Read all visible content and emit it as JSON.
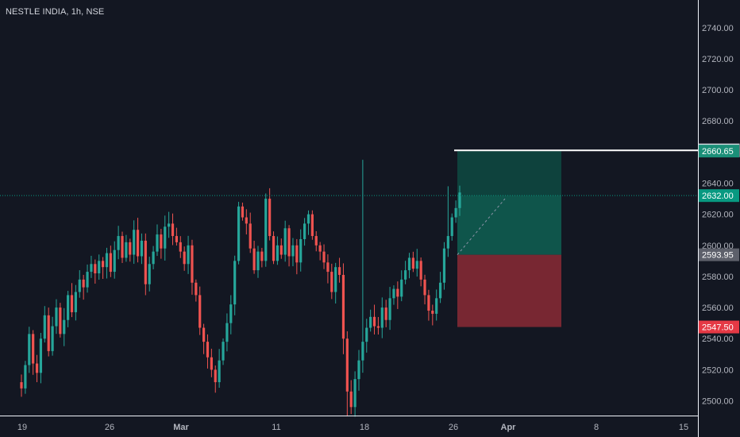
{
  "header": {
    "symbol": "NESTLE INDIA",
    "interval": "1h",
    "exchange": "NSE"
  },
  "colors": {
    "background": "#131722",
    "up": "#26a69a",
    "down": "#ef5350",
    "axis_text": "#b2b5be",
    "profit_zone": "#0f5c50",
    "loss_zone": "#8b2a35",
    "target_label": "#1b8f78",
    "stop_label": "#e53945",
    "entry_label": "#5d606b",
    "current_label": "#089981"
  },
  "chart_data": {
    "type": "candlestick",
    "title": "NESTLE INDIA, 1h, NSE",
    "ylim": [
      2490,
      2750
    ],
    "y_ticks": [
      "2500.00",
      "2520.00",
      "2540.00",
      "2560.00",
      "2580.00",
      "2600.00",
      "2620.00",
      "2640.00",
      "2660.00",
      "2680.00",
      "2700.00",
      "2720.00",
      "2740.00"
    ],
    "x_ticks": [
      "19",
      "26",
      "Mar",
      "11",
      "18",
      "26",
      "Apr",
      "8",
      "15"
    ],
    "bold_x_ticks": [
      "Mar",
      "Apr"
    ],
    "close_path": [
      2508,
      2523,
      2543,
      2524,
      2518,
      2540,
      2555,
      2532,
      2548,
      2560,
      2543,
      2552,
      2568,
      2557,
      2570,
      2578,
      2573,
      2583,
      2588,
      2582,
      2590,
      2586,
      2595,
      2583,
      2597,
      2606,
      2592,
      2602,
      2594,
      2610,
      2593,
      2603,
      2575,
      2588,
      2596,
      2607,
      2598,
      2612,
      2614,
      2606,
      2602,
      2596,
      2588,
      2600,
      2576,
      2568,
      2547,
      2538,
      2528,
      2520,
      2512,
      2526,
      2538,
      2550,
      2562,
      2590,
      2625,
      2618,
      2614,
      2598,
      2584,
      2596,
      2590,
      2630,
      2606,
      2590,
      2600,
      2594,
      2611,
      2593,
      2600,
      2589,
      2604,
      2614,
      2620,
      2606,
      2600,
      2596,
      2589,
      2583,
      2570,
      2586,
      2581,
      2540,
      2506,
      2496,
      2514,
      2526,
      2538,
      2547,
      2554,
      2548,
      2547,
      2560,
      2552,
      2566,
      2572,
      2567,
      2578,
      2584,
      2592,
      2585,
      2590,
      2578,
      2568,
      2558,
      2556,
      2566,
      2576,
      2598,
      2606,
      2618,
      2624,
      2634
    ],
    "high_extremes": [
      2655,
      2640,
      2633
    ],
    "low_extremes": [
      2512,
      2490
    ],
    "position": {
      "side": "long",
      "entry": 2593.95,
      "target": 2660.65,
      "stop": 2547.5
    },
    "price_labels": {
      "last_high_line": "2661.10",
      "target": "2660.65",
      "current": "2632.00",
      "entry": "2593.95",
      "stop": "2547.50"
    },
    "current_price": 2632.0,
    "grid": false
  }
}
